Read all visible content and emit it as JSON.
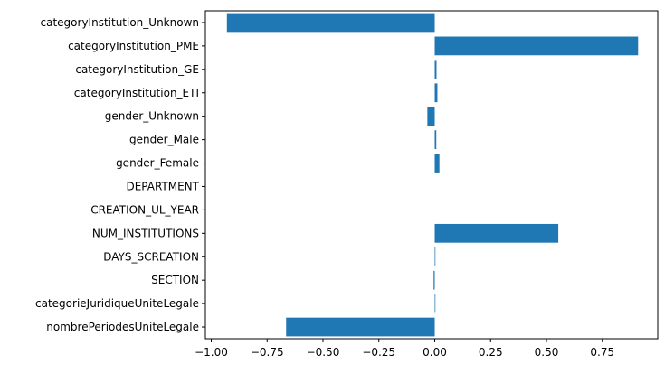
{
  "chart_data": {
    "type": "bar",
    "orientation": "horizontal",
    "title": "",
    "xlabel": "",
    "ylabel": "",
    "categories": [
      "categoryInstitution_Unknown",
      "categoryInstitution_PME",
      "categoryInstitution_GE",
      "categoryInstitution_ETI",
      "gender_Unknown",
      "gender_Male",
      "gender_Female",
      "DEPARTMENT",
      "CREATION_UL_YEAR",
      "NUM_INSTITUTIONS",
      "DAYS_SCREATION",
      "SECTION",
      "categorieJuridiqueUniteLegale",
      "nombrePeriodesUniteLegale"
    ],
    "values": [
      -0.93,
      0.91,
      0.008,
      0.012,
      -0.033,
      0.007,
      0.021,
      0.0,
      0.0,
      0.553,
      0.003,
      -0.005,
      0.003,
      -0.665
    ],
    "xlim": [
      -1.0,
      1.0
    ],
    "xticks": [
      -1.0,
      -0.75,
      -0.5,
      -0.25,
      0.0,
      0.25,
      0.5,
      0.75
    ],
    "xtick_labels": [
      "−1.00",
      "−0.75",
      "−0.50",
      "−0.25",
      "0.00",
      "0.25",
      "0.50",
      "0.75"
    ],
    "bar_color": "#1f77b4",
    "grid": false,
    "legend": "none"
  }
}
